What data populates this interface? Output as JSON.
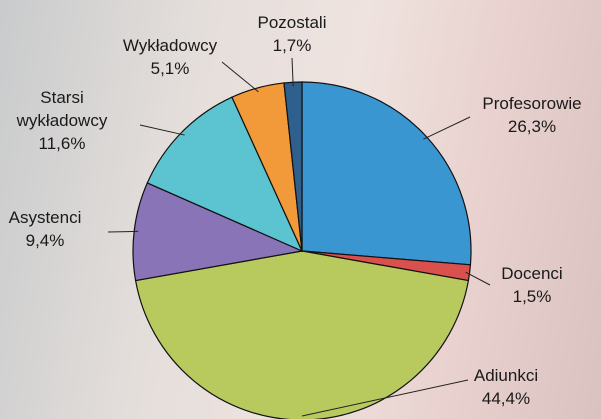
{
  "chart_data": {
    "type": "pie",
    "categories": [
      "Profesorowie",
      "Docenci",
      "Adiunkci",
      "Asystenci",
      "Starsi wykładowcy",
      "Wykładowcy",
      "Pozostali"
    ],
    "values": [
      26.3,
      1.5,
      44.4,
      9.4,
      11.6,
      5.1,
      1.7
    ],
    "value_labels": [
      "26,3%",
      "1,5%",
      "44,4%",
      "9,4%",
      "11,6%",
      "5,1%",
      "1,7%"
    ],
    "colors": [
      "#3a96d0",
      "#d9504c",
      "#b8c95e",
      "#8874b6",
      "#5cc3d1",
      "#f29a3a",
      "#2f5f8c"
    ]
  }
}
